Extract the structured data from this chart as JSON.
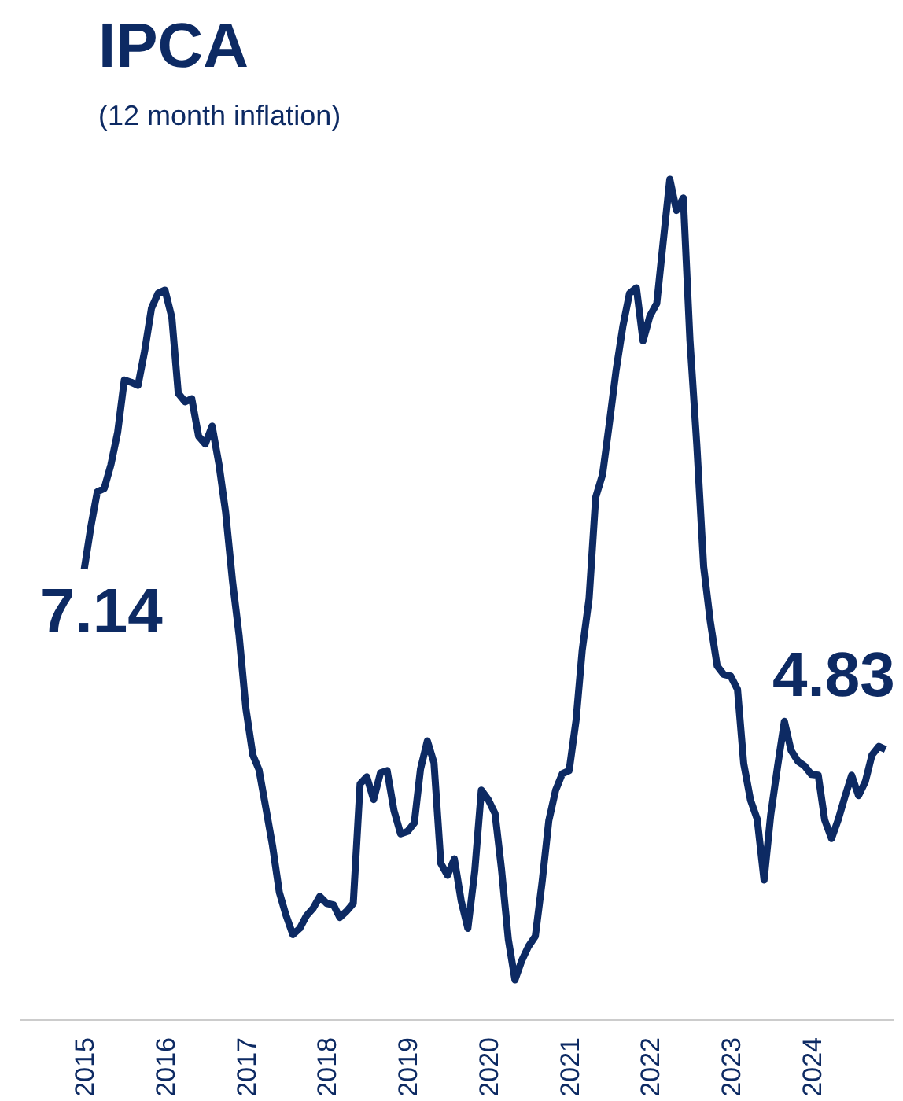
{
  "chart_data": {
    "type": "line",
    "title": "IPCA",
    "subtitle": "(12 month inflation)",
    "x": [
      "2015-01",
      "2015-02",
      "2015-03",
      "2015-04",
      "2015-05",
      "2015-06",
      "2015-07",
      "2015-08",
      "2015-09",
      "2015-10",
      "2015-11",
      "2015-12",
      "2016-01",
      "2016-02",
      "2016-03",
      "2016-04",
      "2016-05",
      "2016-06",
      "2016-07",
      "2016-08",
      "2016-09",
      "2016-10",
      "2016-11",
      "2016-12",
      "2017-01",
      "2017-02",
      "2017-03",
      "2017-04",
      "2017-05",
      "2017-06",
      "2017-07",
      "2017-08",
      "2017-09",
      "2017-10",
      "2017-11",
      "2017-12",
      "2018-01",
      "2018-02",
      "2018-03",
      "2018-04",
      "2018-05",
      "2018-06",
      "2018-07",
      "2018-08",
      "2018-09",
      "2018-10",
      "2018-11",
      "2018-12",
      "2019-01",
      "2019-02",
      "2019-03",
      "2019-04",
      "2019-05",
      "2019-06",
      "2019-07",
      "2019-08",
      "2019-09",
      "2019-10",
      "2019-11",
      "2019-12",
      "2020-01",
      "2020-02",
      "2020-03",
      "2020-04",
      "2020-05",
      "2020-06",
      "2020-07",
      "2020-08",
      "2020-09",
      "2020-10",
      "2020-11",
      "2020-12",
      "2021-01",
      "2021-02",
      "2021-03",
      "2021-04",
      "2021-05",
      "2021-06",
      "2021-07",
      "2021-08",
      "2021-09",
      "2021-10",
      "2021-11",
      "2021-12",
      "2022-01",
      "2022-02",
      "2022-03",
      "2022-04",
      "2022-05",
      "2022-06",
      "2022-07",
      "2022-08",
      "2022-09",
      "2022-10",
      "2022-11",
      "2022-12",
      "2023-01",
      "2023-02",
      "2023-03",
      "2023-04",
      "2023-05",
      "2023-06",
      "2023-07",
      "2023-08",
      "2023-09",
      "2023-10",
      "2023-11",
      "2023-12",
      "2024-01",
      "2024-02",
      "2024-03",
      "2024-04",
      "2024-05",
      "2024-06",
      "2024-07",
      "2024-08",
      "2024-09",
      "2024-10",
      "2024-11",
      "2024-12"
    ],
    "series": [
      {
        "color": "#0d2a63",
        "values": [
          7.14,
          7.7,
          8.13,
          8.17,
          8.47,
          8.89,
          9.56,
          9.53,
          9.49,
          9.93,
          10.48,
          10.67,
          10.71,
          10.36,
          9.39,
          9.28,
          9.32,
          8.84,
          8.74,
          8.97,
          8.48,
          7.87,
          6.99,
          6.29,
          5.35,
          4.76,
          4.57,
          4.08,
          3.6,
          3.0,
          2.71,
          2.46,
          2.54,
          2.7,
          2.8,
          2.95,
          2.86,
          2.84,
          2.68,
          2.76,
          2.86,
          4.39,
          4.48,
          4.19,
          4.53,
          4.56,
          4.05,
          3.75,
          3.78,
          3.89,
          4.58,
          4.94,
          4.66,
          3.37,
          3.22,
          3.43,
          2.89,
          2.54,
          3.27,
          4.31,
          4.19,
          4.01,
          3.3,
          2.4,
          1.88,
          2.13,
          2.31,
          2.44,
          3.14,
          3.92,
          4.31,
          4.52,
          4.56,
          5.2,
          6.1,
          6.76,
          8.06,
          8.35,
          8.99,
          9.68,
          10.25,
          10.67,
          10.74,
          10.06,
          10.38,
          10.54,
          11.3,
          12.13,
          11.73,
          11.89,
          10.07,
          8.73,
          7.17,
          6.47,
          5.9,
          5.79,
          5.77,
          5.6,
          4.65,
          4.18,
          3.94,
          3.16,
          3.99,
          4.61,
          5.19,
          4.82,
          4.68,
          4.62,
          4.51,
          4.5,
          3.93,
          3.69,
          3.93,
          4.23,
          4.5,
          4.24,
          4.42,
          4.76,
          4.87,
          4.83
        ],
        "value_labels": [
          "7.14",
          null,
          null,
          null,
          null,
          null,
          null,
          null,
          null,
          null,
          null,
          null,
          null,
          null,
          null,
          null,
          null,
          null,
          null,
          null,
          null,
          null,
          null,
          null,
          null,
          null,
          null,
          null,
          null,
          null,
          null,
          null,
          null,
          null,
          null,
          null,
          null,
          null,
          null,
          null,
          null,
          null,
          null,
          null,
          null,
          null,
          null,
          null,
          null,
          null,
          null,
          null,
          null,
          null,
          null,
          null,
          null,
          null,
          null,
          null,
          null,
          null,
          null,
          null,
          null,
          null,
          null,
          null,
          null,
          null,
          null,
          null,
          null,
          null,
          null,
          null,
          null,
          null,
          null,
          null,
          null,
          null,
          null,
          null,
          null,
          null,
          null,
          null,
          null,
          null,
          null,
          null,
          null,
          null,
          null,
          null,
          null,
          null,
          null,
          null,
          null,
          null,
          null,
          null,
          null,
          null,
          null,
          null,
          null,
          null,
          null,
          null,
          null,
          null,
          null,
          null,
          null,
          null,
          null,
          "4.83"
        ]
      }
    ],
    "xlim": [
      "2014-03-15",
      "2025-01-10"
    ],
    "xticks": [
      "2015",
      "2016",
      "2017",
      "2018",
      "2019",
      "2020",
      "2021",
      "2022",
      "2023",
      "2024"
    ],
    "tick_labels": "x",
    "grid": false,
    "line_style": "solid"
  }
}
